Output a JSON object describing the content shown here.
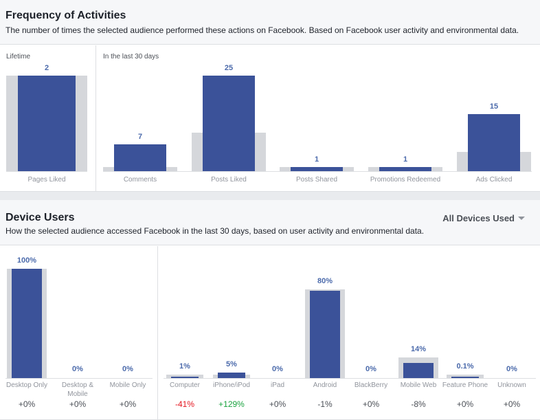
{
  "frequency": {
    "title": "Frequency of Activities",
    "subtitle": "The number of times the selected audience performed these actions on Facebook. Based on Facebook user activity and environmental data.",
    "lifetime_label": "Lifetime",
    "last30_label": "In the last 30 days",
    "chart_data": {
      "type": "bar",
      "unit": "times",
      "categories": [
        "Pages Liked",
        "Comments",
        "Posts Liked",
        "Posts Shared",
        "Promotions Redeemed",
        "Ads Clicked"
      ],
      "values": [
        2,
        7,
        25,
        1,
        1,
        15
      ],
      "value_labels": [
        "2",
        "7",
        "25",
        "1",
        "1",
        "15"
      ],
      "baseline_values": [
        2,
        1,
        10,
        1,
        1,
        5
      ],
      "groups": [
        "Lifetime",
        "In the last 30 days",
        "In the last 30 days",
        "In the last 30 days",
        "In the last 30 days",
        "In the last 30 days"
      ]
    }
  },
  "device": {
    "title": "Device Users",
    "subtitle": "How the selected audience accessed Facebook in the last 30 days, based on user activity and environmental data.",
    "dropdown_label": "All Devices Used",
    "chart_data": {
      "type": "bar",
      "unit": "%",
      "categories": [
        "Desktop Only",
        "Desktop & Mobile",
        "Mobile Only",
        "Computer",
        "iPhone/iPod",
        "iPad",
        "Android",
        "BlackBerry",
        "Mobile Web",
        "Feature Phone",
        "Unknown"
      ],
      "values": [
        100,
        0,
        0,
        1,
        5,
        0,
        80,
        0,
        14,
        0.1,
        0
      ],
      "value_labels": [
        "100%",
        "0%",
        "0%",
        "1%",
        "5%",
        "0%",
        "80%",
        "0%",
        "14%",
        "0.1%",
        "0%"
      ],
      "baseline_values": [
        100,
        0,
        0,
        2,
        2,
        0,
        81,
        0,
        19,
        0.2,
        0
      ],
      "changes": [
        "+0%",
        "+0%",
        "+0%",
        "-41%",
        "+129%",
        "+0%",
        "-1%",
        "+0%",
        "-8%",
        "+0%",
        "+0%"
      ],
      "change_colors": [
        "#4b4f56",
        "#4b4f56",
        "#4b4f56",
        "#e4151f",
        "#19a23e",
        "#4b4f56",
        "#4b4f56",
        "#4b4f56",
        "#4b4f56",
        "#4b4f56",
        "#4b4f56"
      ]
    }
  }
}
